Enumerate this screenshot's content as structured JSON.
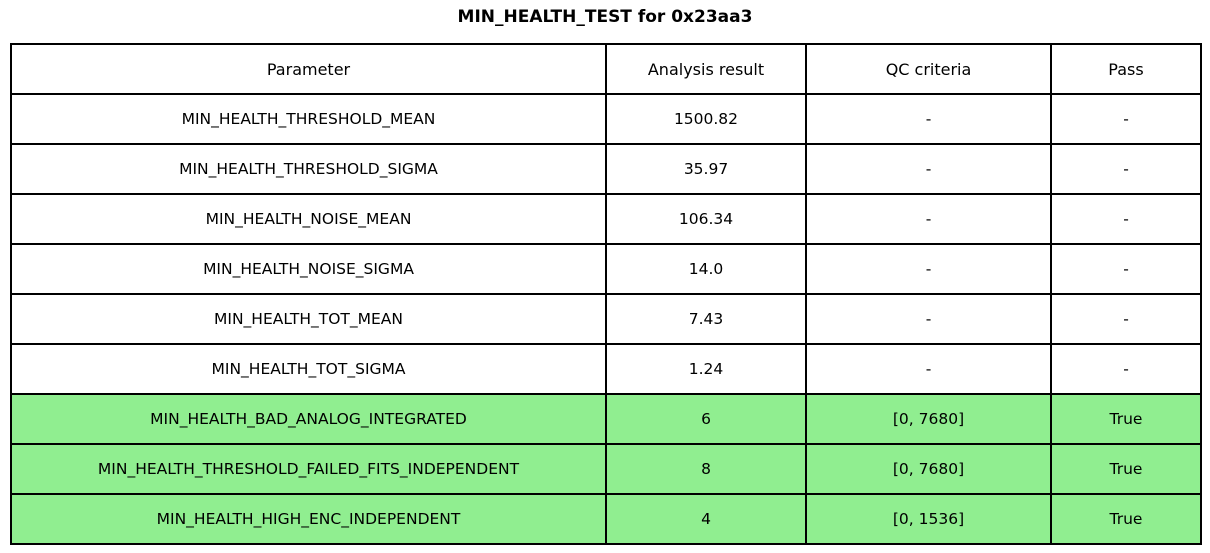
{
  "page": {
    "title": "MIN_HEALTH_TEST for 0x23aa3"
  },
  "colors": {
    "pass_row_bg": "#90EE90",
    "default_row_bg": "#FFFFFF",
    "border": "#000000",
    "text": "#000000"
  },
  "chart_data": {
    "type": "table",
    "title": "MIN_HEALTH_TEST for 0x23aa3",
    "columns": [
      "Parameter",
      "Analysis result",
      "QC criteria",
      "Pass"
    ],
    "rows": [
      {
        "cells": [
          "MIN_HEALTH_THRESHOLD_MEAN",
          "1500.82",
          "-",
          "-"
        ],
        "highlight": false
      },
      {
        "cells": [
          "MIN_HEALTH_THRESHOLD_SIGMA",
          "35.97",
          "-",
          "-"
        ],
        "highlight": false
      },
      {
        "cells": [
          "MIN_HEALTH_NOISE_MEAN",
          "106.34",
          "-",
          "-"
        ],
        "highlight": false
      },
      {
        "cells": [
          "MIN_HEALTH_NOISE_SIGMA",
          "14.0",
          "-",
          "-"
        ],
        "highlight": false
      },
      {
        "cells": [
          "MIN_HEALTH_TOT_MEAN",
          "7.43",
          "-",
          "-"
        ],
        "highlight": false
      },
      {
        "cells": [
          "MIN_HEALTH_TOT_SIGMA",
          "1.24",
          "-",
          "-"
        ],
        "highlight": false
      },
      {
        "cells": [
          "MIN_HEALTH_BAD_ANALOG_INTEGRATED",
          "6",
          "[0, 7680]",
          "True"
        ],
        "highlight": true
      },
      {
        "cells": [
          "MIN_HEALTH_THRESHOLD_FAILED_FITS_INDEPENDENT",
          "8",
          "[0, 7680]",
          "True"
        ],
        "highlight": true
      },
      {
        "cells": [
          "MIN_HEALTH_HIGH_ENC_INDEPENDENT",
          "4",
          "[0, 1536]",
          "True"
        ],
        "highlight": true
      }
    ]
  }
}
